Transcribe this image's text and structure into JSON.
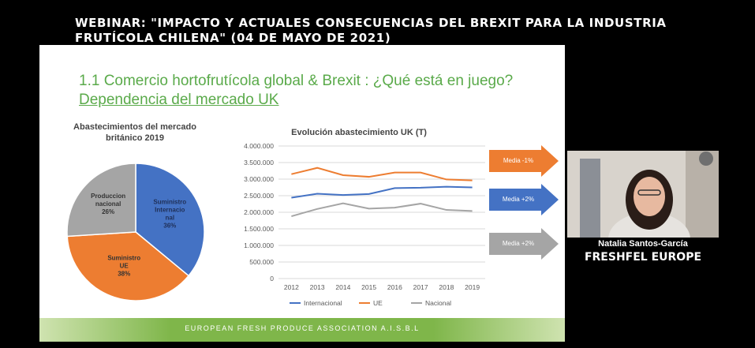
{
  "banner": {
    "line1": "WEBINAR: \"IMPACTO Y ACTUALES CONSECUENCIAS DEL BREXIT PARA LA INDUSTRIA",
    "line2": "FRUTÍCOLA CHILENA\" (04 DE MAYO DE 2021)"
  },
  "slide": {
    "title": "1.1 Comercio hortofrutícola global & Brexit : ¿Qué está en juego?",
    "subtitle": "Dependencia del mercado UK",
    "footer": "EUROPEAN FRESH PRODUCE ASSOCIATION A.I.S.B.L"
  },
  "arrows": [
    {
      "label": "Media -1%",
      "color": "#ed7d31"
    },
    {
      "label": "Media +2%",
      "color": "#4472c4"
    },
    {
      "label": "Media +2%",
      "color": "#a5a5a5"
    }
  ],
  "speaker": {
    "name": "Natalia Santos-García",
    "org": "FRESHFEL EUROPE"
  },
  "chart_data": [
    {
      "type": "pie",
      "title_lines": [
        "Abastecimientos del mercado",
        "británico 2019"
      ],
      "slices": [
        {
          "label_lines": [
            "Suministro",
            "Internacio",
            "nal"
          ],
          "pct_label": "36%",
          "value": 36,
          "color": "#4472c4"
        },
        {
          "label_lines": [
            "Suministro",
            "UE"
          ],
          "pct_label": "38%",
          "value": 38,
          "color": "#ed7d31"
        },
        {
          "label_lines": [
            "Produccion",
            "nacional"
          ],
          "pct_label": "26%",
          "value": 26,
          "color": "#a5a5a5"
        }
      ]
    },
    {
      "type": "line",
      "title": "Evolución abastecimiento UK (T)",
      "categories": [
        "2012",
        "2013",
        "2014",
        "2015",
        "2016",
        "2017",
        "2018",
        "2019"
      ],
      "ylim": [
        0,
        4000000
      ],
      "yticks": [
        0,
        500000,
        1000000,
        1500000,
        2000000,
        2500000,
        3000000,
        3500000,
        4000000
      ],
      "ytick_labels": [
        "0",
        "500.000",
        "1.000.000",
        "1.500.000",
        "2.000.000",
        "2.500.000",
        "3.000.000",
        "3.500.000",
        "4.000.000"
      ],
      "grid": true,
      "legend_position": "bottom",
      "series": [
        {
          "name": "Internacional",
          "color": "#4472c4",
          "values": [
            2440000,
            2560000,
            2520000,
            2550000,
            2730000,
            2740000,
            2770000,
            2750000
          ]
        },
        {
          "name": "UE",
          "color": "#ed7d31",
          "values": [
            3150000,
            3340000,
            3120000,
            3070000,
            3200000,
            3200000,
            2990000,
            2960000
          ]
        },
        {
          "name": "Nacional",
          "color": "#a5a5a5",
          "values": [
            1880000,
            2100000,
            2270000,
            2110000,
            2140000,
            2260000,
            2070000,
            2040000
          ]
        }
      ]
    }
  ]
}
